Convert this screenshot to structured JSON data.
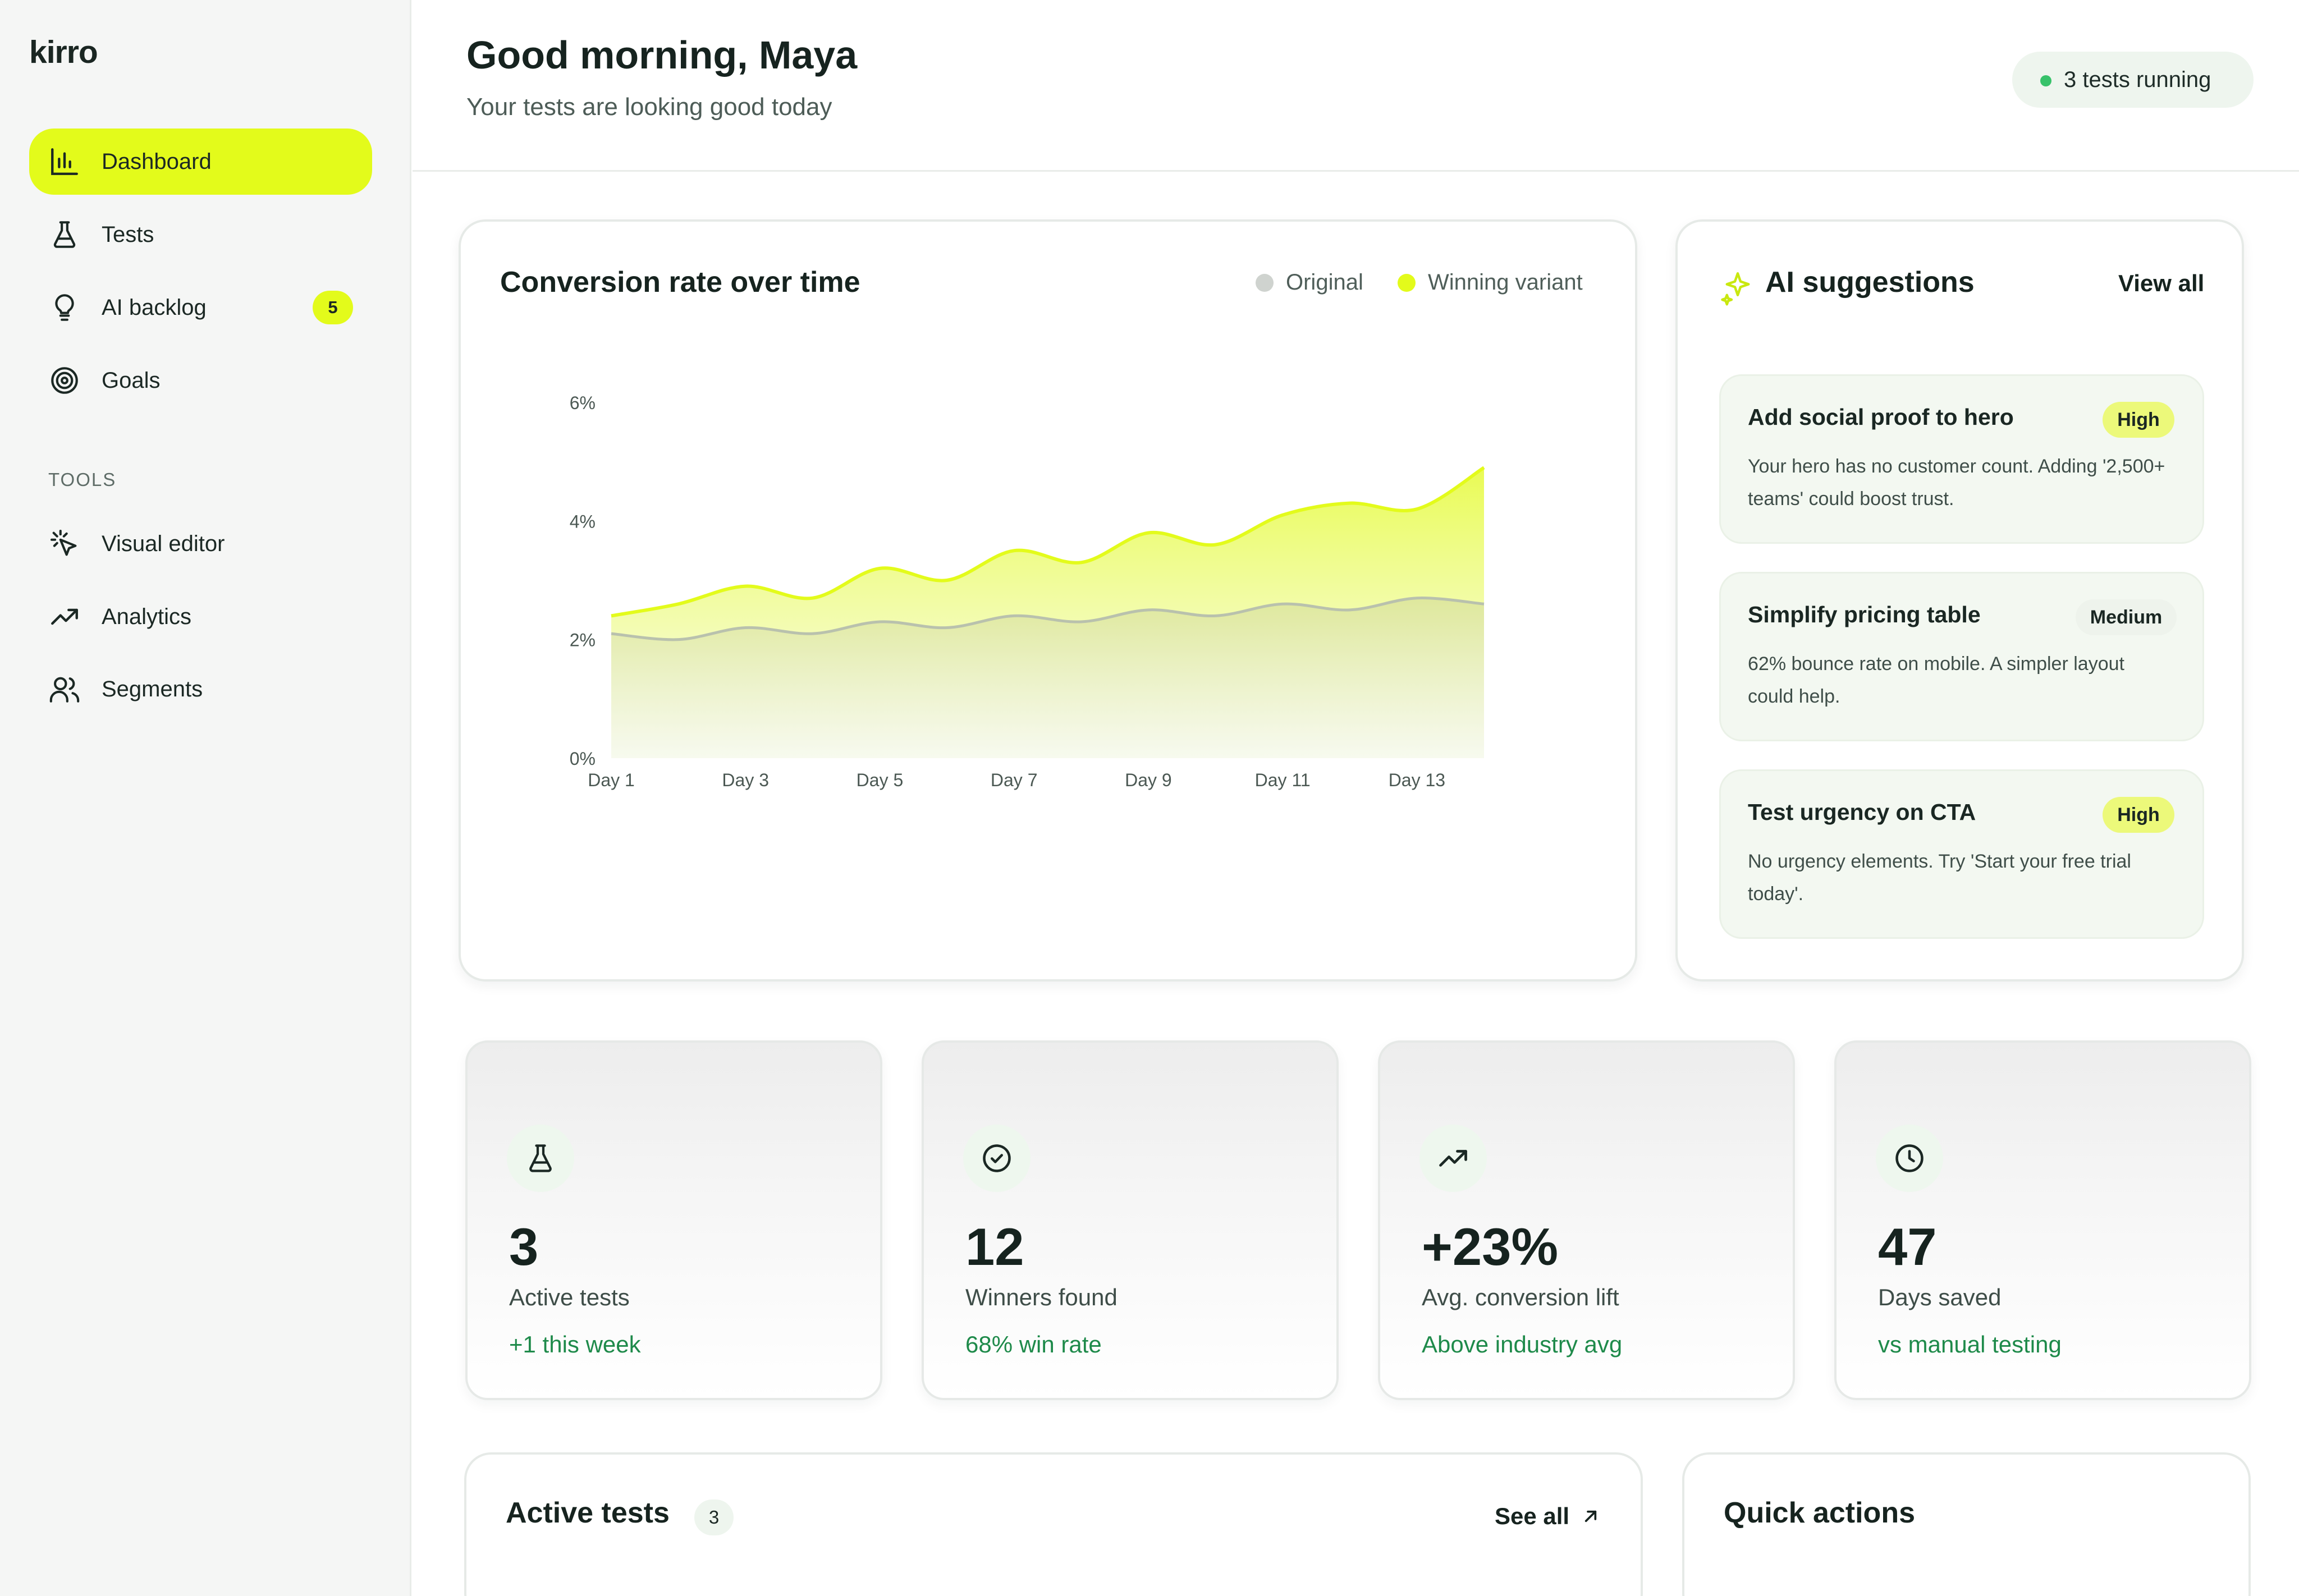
{
  "app": {
    "logo": "kirro"
  },
  "sidebar": {
    "nav": [
      {
        "label": "Dashboard",
        "icon": "bar-chart-icon",
        "active": true
      },
      {
        "label": "Tests",
        "icon": "flask-icon"
      },
      {
        "label": "AI backlog",
        "icon": "lightbulb-icon",
        "badge": "5"
      },
      {
        "label": "Goals",
        "icon": "target-icon"
      }
    ],
    "tools_label": "TOOLS",
    "tools": [
      {
        "label": "Visual editor",
        "icon": "cursor-click-icon"
      },
      {
        "label": "Analytics",
        "icon": "trending-up-icon"
      },
      {
        "label": "Segments",
        "icon": "users-icon"
      }
    ]
  },
  "header": {
    "greeting": "Good morning, Maya",
    "subtitle": "Your tests are looking good today",
    "status_pill": "3 tests running"
  },
  "conversion_card": {
    "title": "Conversion rate over time",
    "legend": {
      "original": "Original",
      "winning": "Winning variant"
    }
  },
  "chart_data": {
    "type": "area",
    "title": "Conversion rate over time",
    "x": [
      "Day 1",
      "Day 2",
      "Day 3",
      "Day 4",
      "Day 5",
      "Day 6",
      "Day 7",
      "Day 8",
      "Day 9",
      "Day 10",
      "Day 11",
      "Day 12",
      "Day 13",
      "Day 14"
    ],
    "x_tick_labels": [
      "Day 1",
      "Day 3",
      "Day 5",
      "Day 7",
      "Day 9",
      "Day 11",
      "Day 13"
    ],
    "y_tick_labels": [
      "0%",
      "2%",
      "4%",
      "6%"
    ],
    "ylim": [
      0,
      6
    ],
    "series": [
      {
        "name": "Original",
        "color": "#c9cfc6",
        "values": [
          2.1,
          2.0,
          2.2,
          2.1,
          2.3,
          2.2,
          2.4,
          2.3,
          2.5,
          2.4,
          2.6,
          2.5,
          2.7,
          2.6
        ]
      },
      {
        "name": "Winning variant",
        "color": "#e3fb1b",
        "values": [
          2.4,
          2.6,
          2.9,
          2.7,
          3.2,
          3.0,
          3.5,
          3.3,
          3.8,
          3.6,
          4.1,
          4.3,
          4.2,
          4.9
        ]
      }
    ],
    "legend": "top-right",
    "grid": false
  },
  "ai_card": {
    "title": "AI suggestions",
    "view_all": "View all",
    "suggestions": [
      {
        "title": "Add social proof to hero",
        "priority": "High",
        "body": "Your hero has no customer count. Adding '2,500+ teams' could boost trust."
      },
      {
        "title": "Simplify pricing table",
        "priority": "Medium",
        "body": "62% bounce rate on mobile. A simpler layout could help."
      },
      {
        "title": "Test urgency on CTA",
        "priority": "High",
        "body": "No urgency elements. Try 'Start your free trial today'."
      }
    ]
  },
  "stats": [
    {
      "value": "3",
      "label": "Active tests",
      "sub": "+1 this week",
      "icon": "flask-icon"
    },
    {
      "value": "12",
      "label": "Winners found",
      "sub": "68% win rate",
      "icon": "check-circle-icon"
    },
    {
      "value": "+23%",
      "label": "Avg. conversion lift",
      "sub": "Above industry avg",
      "icon": "trending-up-icon"
    },
    {
      "value": "47",
      "label": "Days saved",
      "sub": "vs manual testing",
      "icon": "clock-icon"
    }
  ],
  "active_tests_card": {
    "title": "Active tests",
    "count": "3",
    "see_all": "See all"
  },
  "quick_actions_card": {
    "title": "Quick actions"
  },
  "colors": {
    "accent": "#E3FB1B",
    "positive": "#1e8a4a",
    "status_dot": "#37c26a"
  }
}
